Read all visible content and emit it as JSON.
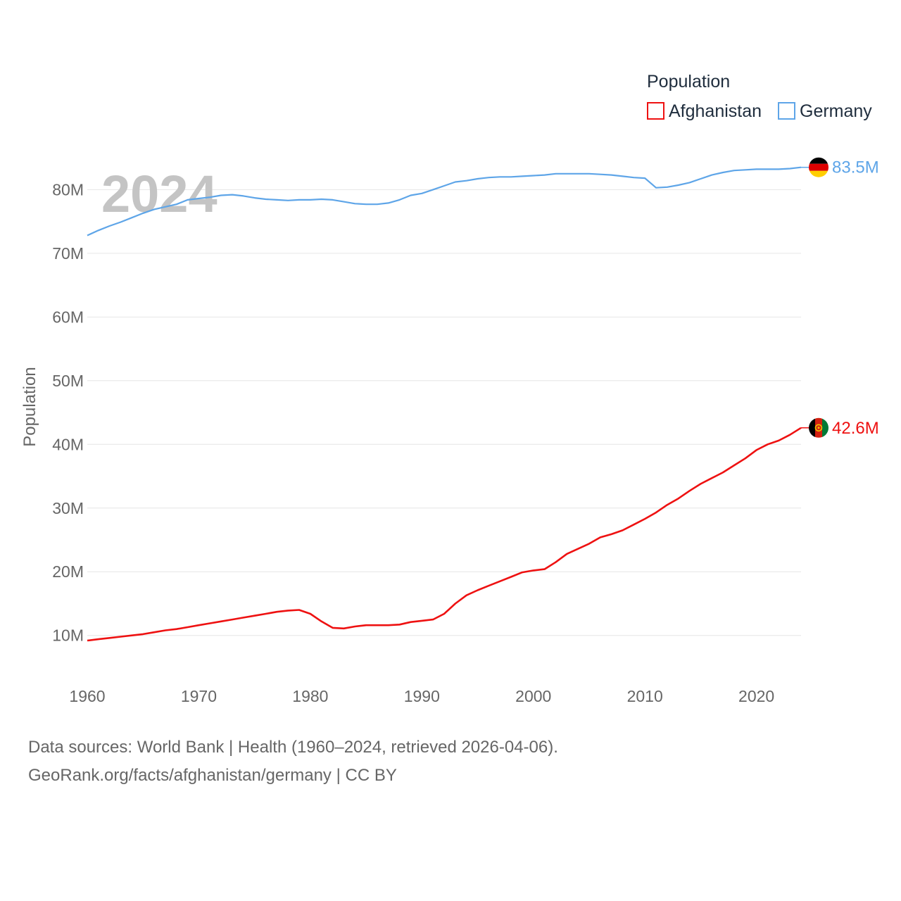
{
  "chart_data": {
    "type": "line",
    "title": "Population",
    "watermark_year": "2024",
    "xlabel": "",
    "ylabel": "Population",
    "xlim": [
      1960,
      2024
    ],
    "ylim": [
      4,
      88
    ],
    "y_unit": "millions",
    "x_ticks": [
      1960,
      1970,
      1980,
      1990,
      2000,
      2010,
      2020
    ],
    "x_tick_labels": [
      "1960",
      "1970",
      "1980",
      "1990",
      "2000",
      "2010",
      "2020"
    ],
    "y_ticks": [
      10,
      20,
      30,
      40,
      50,
      60,
      70,
      80
    ],
    "y_tick_labels": [
      "10M",
      "20M",
      "30M",
      "40M",
      "50M",
      "60M",
      "70M",
      "80M"
    ],
    "grid": true,
    "legend_position": "top-right",
    "x": [
      1960,
      1961,
      1962,
      1963,
      1964,
      1965,
      1966,
      1967,
      1968,
      1969,
      1970,
      1971,
      1972,
      1973,
      1974,
      1975,
      1976,
      1977,
      1978,
      1979,
      1980,
      1981,
      1982,
      1983,
      1984,
      1985,
      1986,
      1987,
      1988,
      1989,
      1990,
      1991,
      1992,
      1993,
      1994,
      1995,
      1996,
      1997,
      1998,
      1999,
      2000,
      2001,
      2002,
      2003,
      2004,
      2005,
      2006,
      2007,
      2008,
      2009,
      2010,
      2011,
      2012,
      2013,
      2014,
      2015,
      2016,
      2017,
      2018,
      2019,
      2020,
      2021,
      2022,
      2023,
      2024
    ],
    "series": [
      {
        "name": "Afghanistan",
        "color": "#ee1111",
        "end_label": "42.6M",
        "flag_icon": "afghanistan-flag-icon",
        "values": [
          9.2,
          9.4,
          9.6,
          9.8,
          10.0,
          10.2,
          10.5,
          10.8,
          11.0,
          11.3,
          11.6,
          11.9,
          12.2,
          12.5,
          12.8,
          13.1,
          13.4,
          13.7,
          13.9,
          14.0,
          13.4,
          12.2,
          11.2,
          11.1,
          11.4,
          11.6,
          11.6,
          11.6,
          11.7,
          12.1,
          12.3,
          12.5,
          13.4,
          15.0,
          16.3,
          17.1,
          17.8,
          18.5,
          19.2,
          19.9,
          20.2,
          20.4,
          21.5,
          22.8,
          23.6,
          24.4,
          25.4,
          25.9,
          26.5,
          27.4,
          28.3,
          29.3,
          30.5,
          31.5,
          32.7,
          33.8,
          34.7,
          35.6,
          36.7,
          37.8,
          39.1,
          40.0,
          40.6,
          41.5,
          42.6
        ]
      },
      {
        "name": "Germany",
        "color": "#5ea5e8",
        "end_label": "83.5M",
        "flag_icon": "germany-flag-icon",
        "values": [
          72.8,
          73.6,
          74.3,
          74.9,
          75.6,
          76.3,
          76.9,
          77.3,
          77.7,
          78.4,
          78.6,
          78.8,
          79.1,
          79.2,
          79.0,
          78.7,
          78.5,
          78.4,
          78.3,
          78.4,
          78.4,
          78.5,
          78.4,
          78.1,
          77.8,
          77.7,
          77.7,
          77.9,
          78.4,
          79.1,
          79.4,
          80.0,
          80.6,
          81.2,
          81.4,
          81.7,
          81.9,
          82.0,
          82.0,
          82.1,
          82.2,
          82.3,
          82.5,
          82.5,
          82.5,
          82.5,
          82.4,
          82.3,
          82.1,
          81.9,
          81.8,
          80.3,
          80.4,
          80.7,
          81.1,
          81.7,
          82.3,
          82.7,
          83.0,
          83.1,
          83.2,
          83.2,
          83.2,
          83.3,
          83.5
        ]
      }
    ]
  },
  "source": {
    "line1": "Data sources: World Bank | Health (1960–2024, retrieved 2026-04-06).",
    "line2": "GeoRank.org/facts/afghanistan/germany | CC BY"
  }
}
